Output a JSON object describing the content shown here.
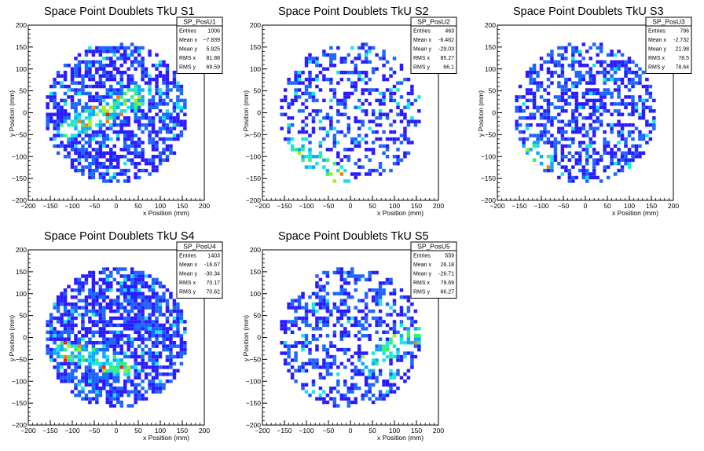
{
  "chart_data": [
    {
      "type": "heatmap",
      "title": "Space Point Doublets TkU S1",
      "xlabel": "x Position (mm)",
      "ylabel": "y Position (mm)",
      "xlim": [
        -200,
        200
      ],
      "ylim": [
        -200,
        200
      ],
      "xticks": [
        "−200",
        "−150",
        "−100",
        "−50",
        "0",
        "50",
        "100",
        "150",
        "200"
      ],
      "yticks": [
        "−200",
        "−150",
        "−100",
        "−50",
        "0",
        "50",
        "100",
        "150",
        "200"
      ],
      "stats": {
        "name": "SP_PosU1",
        "rows": [
          {
            "label": "Entries",
            "value": "1006"
          },
          {
            "label": "Mean x",
            "value": "−7.839"
          },
          {
            "label": "Mean y",
            "value": "5.925"
          },
          {
            "label": "RMS x",
            "value": "81.88"
          },
          {
            "label": "RMS y",
            "value": "69.59"
          }
        ]
      },
      "density": {
        "seed": 11,
        "fill": 0.62,
        "band_pos": [
          [
            -110,
            -40
          ],
          [
            5,
            15
          ],
          [
            60,
            45
          ]
        ],
        "band_neg": []
      }
    },
    {
      "type": "heatmap",
      "title": "Space Point Doublets TkU S2",
      "xlabel": "x Position (mm)",
      "ylabel": "y Position (mm)",
      "xlim": [
        -200,
        200
      ],
      "ylim": [
        -200,
        200
      ],
      "xticks": [
        "−200",
        "−150",
        "−100",
        "−50",
        "0",
        "50",
        "100",
        "150",
        "200"
      ],
      "yticks": [
        "−200",
        "−150",
        "−100",
        "−50",
        "0",
        "50",
        "100",
        "150",
        "200"
      ],
      "stats": {
        "name": "SP_PosU2",
        "rows": [
          {
            "label": "Entries",
            "value": "463"
          },
          {
            "label": "Mean x",
            "value": "-6.462"
          },
          {
            "label": "Mean y",
            "value": "-29.03"
          },
          {
            "label": "RMS x",
            "value": "85.27"
          },
          {
            "label": "RMS y",
            "value": "66.1"
          }
        ]
      },
      "density": {
        "seed": 23,
        "fill": 0.33,
        "band_pos": [],
        "band_neg": [
          [
            -130,
            -80
          ],
          [
            -70,
            -120
          ],
          [
            -20,
            -145
          ]
        ]
      }
    },
    {
      "type": "heatmap",
      "title": "Space Point Doublets TkU S3",
      "xlabel": "x Position (mm)",
      "ylabel": "y Position (mm)",
      "xlim": [
        -200,
        200
      ],
      "ylim": [
        -200,
        200
      ],
      "xticks": [
        "−200",
        "−150",
        "−100",
        "−50",
        "0",
        "50",
        "100",
        "150",
        "200"
      ],
      "yticks": [
        "−200",
        "−150",
        "−100",
        "−50",
        "0",
        "50",
        "100",
        "150",
        "200"
      ],
      "stats": {
        "name": "SP_PosU3",
        "rows": [
          {
            "label": "Entries",
            "value": "796"
          },
          {
            "label": "Mean x",
            "value": "-2.732"
          },
          {
            "label": "Mean y",
            "value": "21.98"
          },
          {
            "label": "RMS x",
            "value": "78.5"
          },
          {
            "label": "RMS y",
            "value": "78.64"
          }
        ]
      },
      "density": {
        "seed": 37,
        "fill": 0.5,
        "band_pos": [],
        "band_neg": [
          [
            -120,
            -80
          ],
          [
            -90,
            -110
          ]
        ]
      }
    },
    {
      "type": "heatmap",
      "title": "Space Point Doublets TkU S4",
      "xlabel": "x Position (mm)",
      "ylabel": "y Position (mm)",
      "xlim": [
        -200,
        200
      ],
      "ylim": [
        -200,
        200
      ],
      "xticks": [
        "−200",
        "−150",
        "−100",
        "−50",
        "0",
        "50",
        "100",
        "150",
        "200"
      ],
      "yticks": [
        "−200",
        "−150",
        "−100",
        "−50",
        "0",
        "50",
        "100",
        "150",
        "200"
      ],
      "stats": {
        "name": "SP_PosU4",
        "rows": [
          {
            "label": "Entries",
            "value": "1403"
          },
          {
            "label": "Mean x",
            "value": "-16.67"
          },
          {
            "label": "Mean y",
            "value": "-30.34"
          },
          {
            "label": "RMS x",
            "value": "70.17"
          },
          {
            "label": "RMS y",
            "value": "70.62"
          }
        ]
      },
      "density": {
        "seed": 41,
        "fill": 0.72,
        "band_pos": [],
        "band_neg": [
          [
            -120,
            -30
          ],
          [
            -40,
            -50
          ],
          [
            20,
            -70
          ]
        ]
      }
    },
    {
      "type": "heatmap",
      "title": "Space Point Doublets TkU S5",
      "xlabel": "x Position (mm)",
      "ylabel": "y Position (mm)",
      "xlim": [
        -200,
        200
      ],
      "ylim": [
        -200,
        200
      ],
      "xticks": [
        "−200",
        "−150",
        "−100",
        "−50",
        "0",
        "50",
        "100",
        "150",
        "200"
      ],
      "yticks": [
        "−200",
        "−150",
        "−100",
        "−50",
        "0",
        "50",
        "100",
        "150",
        "200"
      ],
      "stats": {
        "name": "SP_PosU5",
        "rows": [
          {
            "label": "Entries",
            "value": "559"
          },
          {
            "label": "Mean x",
            "value": "26.18"
          },
          {
            "label": "Mean y",
            "value": "-26.71"
          },
          {
            "label": "RMS x",
            "value": "79.69"
          },
          {
            "label": "RMS y",
            "value": "66.27"
          }
        ]
      },
      "density": {
        "seed": 53,
        "fill": 0.4,
        "band_pos": [
          [
            40,
            -60
          ],
          [
            100,
            -20
          ],
          [
            155,
            10
          ]
        ],
        "band_neg": []
      }
    }
  ],
  "colors": {
    "palette": [
      "#2a1aff",
      "#1b66ff",
      "#10a8ff",
      "#18e6e0",
      "#36f070",
      "#a0f020",
      "#f0e020",
      "#ff7a10",
      "#ff1a10"
    ],
    "axis": "#000000",
    "background": "#ffffff"
  }
}
